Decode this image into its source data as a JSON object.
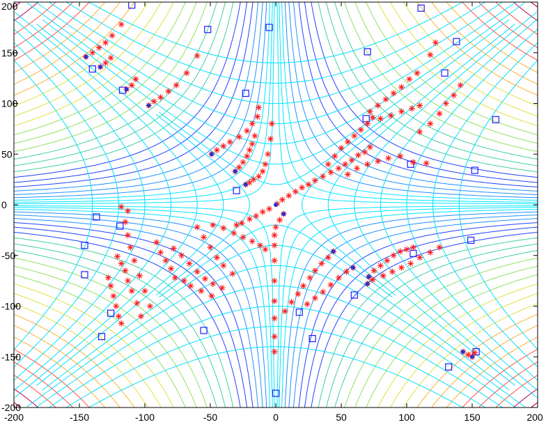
{
  "chart_data": {
    "type": "scatter",
    "title": "",
    "xlabel": "",
    "ylabel": "",
    "xlim": [
      -200,
      200
    ],
    "ylim": [
      -200,
      200
    ],
    "x_ticks": [
      -200,
      -150,
      -100,
      -50,
      0,
      50,
      100,
      150,
      200
    ],
    "y_ticks": [
      -200,
      -150,
      -100,
      -50,
      0,
      50,
      100,
      150,
      200
    ],
    "grid": false,
    "background": {
      "type": "contour",
      "description_function": "hyperbolic saddle, f = (x*y)^2 + c*(x^2 - y^2)",
      "colors": [
        "#00e5ff",
        "#1f8fff",
        "#2040ff",
        "#40d0a0",
        "#90e060",
        "#e0e040",
        "#ffb030",
        "#ff5040",
        "#c00050"
      ]
    },
    "series": [
      {
        "marker": "square",
        "color": "#1c1cff",
        "points": [
          [
            -110,
            197
          ],
          [
            -52,
            173
          ],
          [
            -5,
            175
          ],
          [
            -140,
            134
          ],
          [
            -117,
            113
          ],
          [
            -23,
            110
          ],
          [
            -30,
            14
          ],
          [
            70,
            151
          ],
          [
            69,
            85
          ],
          [
            103,
            40
          ],
          [
            111,
            194
          ],
          [
            138,
            161
          ],
          [
            129,
            130
          ],
          [
            168,
            84
          ],
          [
            152,
            34
          ],
          [
            -137,
            -12
          ],
          [
            -119,
            -21
          ],
          [
            -146,
            -40
          ],
          [
            -146,
            -69
          ],
          [
            -126,
            -107
          ],
          [
            -133,
            -130
          ],
          [
            -55,
            -124
          ],
          [
            0,
            -186
          ],
          [
            18,
            -106
          ],
          [
            28,
            -132
          ],
          [
            60,
            -89
          ],
          [
            105,
            -48
          ],
          [
            149,
            -35
          ],
          [
            132,
            -160
          ],
          [
            153,
            -145
          ]
        ]
      },
      {
        "marker": "star",
        "color": "#ff1a1a",
        "points": [
          [
            -145,
            146
          ],
          [
            -140,
            150
          ],
          [
            -135,
            155
          ],
          [
            -130,
            160
          ],
          [
            -125,
            167
          ],
          [
            -118,
            178
          ],
          [
            -134,
            136
          ],
          [
            -130,
            140
          ],
          [
            -126,
            145
          ],
          [
            -114,
            114
          ],
          [
            -110,
            118
          ],
          [
            -107,
            124
          ],
          [
            -97,
            98
          ],
          [
            -93,
            102
          ],
          [
            -88,
            106
          ],
          [
            -82,
            112
          ],
          [
            -76,
            118
          ],
          [
            -68,
            130
          ],
          [
            -60,
            147
          ],
          [
            -49,
            50
          ],
          [
            -45,
            54
          ],
          [
            -40,
            58
          ],
          [
            -35,
            62
          ],
          [
            -28,
            67
          ],
          [
            -22,
            73
          ],
          [
            -18,
            80
          ],
          [
            -14,
            87
          ],
          [
            -13,
            96
          ],
          [
            -31,
            33
          ],
          [
            -28,
            37
          ],
          [
            -25,
            42
          ],
          [
            -22,
            48
          ],
          [
            -20,
            54
          ],
          [
            -18,
            60
          ],
          [
            -16,
            68
          ],
          [
            -23,
            20
          ],
          [
            -20,
            22
          ],
          [
            -17,
            25
          ],
          [
            -13,
            28
          ],
          [
            -10,
            33
          ],
          [
            -8,
            40
          ],
          [
            -6,
            50
          ],
          [
            -4,
            65
          ],
          [
            -3,
            80
          ],
          [
            -48,
            -20
          ],
          [
            -40,
            -23
          ],
          [
            -32,
            -28
          ],
          [
            -25,
            -32
          ],
          [
            -18,
            -36
          ],
          [
            -12,
            -40
          ],
          [
            -8,
            -44
          ],
          [
            -60,
            -22
          ],
          [
            -55,
            -32
          ],
          [
            -50,
            -42
          ],
          [
            -45,
            -52
          ],
          [
            -40,
            -60
          ],
          [
            -33,
            -68
          ],
          [
            -78,
            -43
          ],
          [
            -72,
            -50
          ],
          [
            -66,
            -58
          ],
          [
            -60,
            -66
          ],
          [
            -54,
            -73
          ],
          [
            -48,
            -78
          ],
          [
            -41,
            -82
          ],
          [
            -70,
            -75
          ],
          [
            -65,
            -80
          ],
          [
            -57,
            -85
          ],
          [
            -49,
            -90
          ],
          [
            -91,
            -37
          ],
          [
            -88,
            -47
          ],
          [
            -84,
            -55
          ],
          [
            -80,
            -63
          ],
          [
            -77,
            -72
          ],
          [
            -115,
            -17
          ],
          [
            -113,
            -30
          ],
          [
            -111,
            -42
          ],
          [
            -108,
            -55
          ],
          [
            -104,
            -70
          ],
          [
            -100,
            -85
          ],
          [
            -96,
            -100
          ],
          [
            -121,
            -51
          ],
          [
            -118,
            -58
          ],
          [
            -115,
            -65
          ],
          [
            -113,
            -75
          ],
          [
            -110,
            -85
          ],
          [
            -106,
            -97
          ],
          [
            -103,
            -110
          ],
          [
            -128,
            -72
          ],
          [
            -126,
            -80
          ],
          [
            -124,
            -90
          ],
          [
            -122,
            -100
          ],
          [
            -120,
            -110
          ],
          [
            -118,
            -117
          ],
          [
            -118,
            -2
          ],
          [
            -113,
            -6
          ],
          [
            6,
            -9
          ],
          [
            3,
            -15
          ],
          [
            0,
            -22
          ],
          [
            -1,
            -30
          ],
          [
            -1,
            -40
          ],
          [
            -1,
            -55
          ],
          [
            -1,
            -75
          ],
          [
            -1,
            -95
          ],
          [
            -1,
            -112
          ],
          [
            -1,
            -130
          ],
          [
            -1,
            -145
          ],
          [
            44,
            -46
          ],
          [
            40,
            -52
          ],
          [
            35,
            -58
          ],
          [
            30,
            -65
          ],
          [
            26,
            -72
          ],
          [
            21,
            -80
          ],
          [
            17,
            -88
          ],
          [
            12,
            -96
          ],
          [
            7,
            -105
          ],
          [
            59,
            -62
          ],
          [
            54,
            -66
          ],
          [
            48,
            -72
          ],
          [
            42,
            -79
          ],
          [
            36,
            -86
          ],
          [
            30,
            -92
          ],
          [
            24,
            -98
          ],
          [
            71,
            -71
          ],
          [
            75,
            -65
          ],
          [
            80,
            -60
          ],
          [
            85,
            -55
          ],
          [
            90,
            -50
          ],
          [
            95,
            -46
          ],
          [
            100,
            -44
          ],
          [
            105,
            -42
          ],
          [
            70,
            -78
          ],
          [
            74,
            -74
          ],
          [
            82,
            -70
          ],
          [
            89,
            -66
          ],
          [
            96,
            -62
          ],
          [
            103,
            -58
          ],
          [
            110,
            -52
          ],
          [
            118,
            -47
          ],
          [
            125,
            -42
          ],
          [
            1,
            1
          ],
          [
            5,
            5
          ],
          [
            10,
            9
          ],
          [
            15,
            13
          ],
          [
            20,
            17
          ],
          [
            25,
            20
          ],
          [
            30,
            24
          ],
          [
            36,
            28
          ],
          [
            42,
            32
          ],
          [
            48,
            36
          ],
          [
            53,
            40
          ],
          [
            58,
            44
          ],
          [
            63,
            49
          ],
          [
            68,
            52
          ],
          [
            72,
            57
          ],
          [
            -5,
            -4
          ],
          [
            -10,
            -7
          ],
          [
            -15,
            -11
          ],
          [
            -20,
            -14
          ],
          [
            -26,
            -18
          ],
          [
            -30,
            -20
          ],
          [
            40,
            40
          ],
          [
            45,
            48
          ],
          [
            50,
            56
          ],
          [
            55,
            62
          ],
          [
            60,
            68
          ],
          [
            65,
            74
          ],
          [
            70,
            80
          ],
          [
            74,
            86
          ],
          [
            55,
            30
          ],
          [
            62,
            36
          ],
          [
            70,
            40
          ],
          [
            78,
            43
          ],
          [
            86,
            46
          ],
          [
            95,
            48
          ],
          [
            105,
            42
          ],
          [
            115,
            41
          ],
          [
            72,
            92
          ],
          [
            78,
            98
          ],
          [
            84,
            104
          ],
          [
            90,
            110
          ],
          [
            96,
            116
          ],
          [
            102,
            124
          ],
          [
            108,
            130
          ],
          [
            80,
            85
          ],
          [
            88,
            88
          ],
          [
            96,
            92
          ],
          [
            104,
            95
          ],
          [
            110,
            98
          ],
          [
            110,
            72
          ],
          [
            118,
            80
          ],
          [
            125,
            90
          ],
          [
            130,
            100
          ],
          [
            136,
            108
          ],
          [
            141,
            118
          ],
          [
            118,
            148
          ],
          [
            122,
            160
          ],
          [
            143,
            -145
          ],
          [
            147,
            -148
          ],
          [
            150,
            -150
          ],
          [
            152,
            -146
          ]
        ]
      },
      {
        "marker": "dot",
        "color": "#3030c8",
        "points": [
          [
            -145,
            146
          ],
          [
            -134,
            136
          ],
          [
            -114,
            114
          ],
          [
            -97,
            98
          ],
          [
            -49,
            50
          ],
          [
            -31,
            33
          ],
          [
            -23,
            20
          ],
          [
            0,
            0
          ],
          [
            6,
            -9
          ],
          [
            44,
            -46
          ],
          [
            59,
            -62
          ],
          [
            71,
            -71
          ],
          [
            70,
            -78
          ],
          [
            143,
            -145
          ],
          [
            150,
            -150
          ]
        ]
      }
    ]
  }
}
